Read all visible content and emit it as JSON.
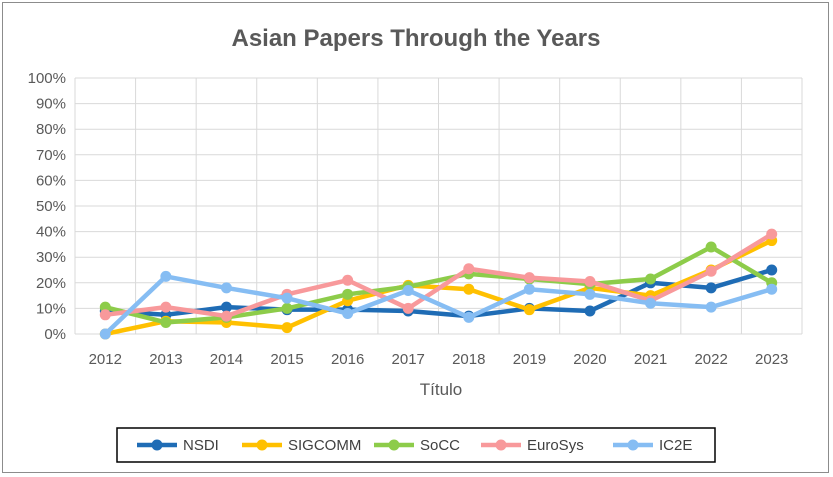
{
  "chart_data": {
    "type": "line",
    "title": "Asian Papers Through the Years",
    "xlabel": "Título",
    "ylabel": "",
    "x": [
      "2012",
      "2013",
      "2014",
      "2015",
      "2016",
      "2017",
      "2018",
      "2019",
      "2020",
      "2021",
      "2022",
      "2023"
    ],
    "ylim": [
      0,
      100
    ],
    "y_ticks": [
      "0%",
      "10%",
      "20%",
      "30%",
      "40%",
      "50%",
      "60%",
      "70%",
      "80%",
      "90%",
      "100%"
    ],
    "grid": true,
    "legend_position": "bottom",
    "series": [
      {
        "name": "NSDI",
        "color": "#1f6cb5",
        "values": [
          9,
          7.5,
          10.5,
          9.5,
          9.5,
          9,
          7,
          10,
          9,
          20,
          18,
          25
        ]
      },
      {
        "name": "SIGCOMM",
        "color": "#ffc000",
        "values": [
          0,
          5,
          4.5,
          2.5,
          13,
          19,
          17.5,
          9.5,
          18,
          15,
          25,
          36.5
        ]
      },
      {
        "name": "SoCC",
        "color": "#8dcc4a",
        "values": [
          10.5,
          4.5,
          6.5,
          10,
          15.5,
          18.5,
          23.5,
          21.5,
          19.5,
          21.5,
          34,
          20
        ]
      },
      {
        "name": "EuroSys",
        "color": "#f8999b",
        "values": [
          7.5,
          10.5,
          7,
          15.5,
          21,
          10,
          25.5,
          22,
          20.5,
          13,
          24.5,
          39
        ]
      },
      {
        "name": "IC2E",
        "color": "#86bdf3",
        "values": [
          0,
          22.5,
          18,
          14,
          8,
          17,
          6.5,
          17.5,
          15.5,
          12,
          10.5,
          17.5
        ]
      }
    ]
  }
}
